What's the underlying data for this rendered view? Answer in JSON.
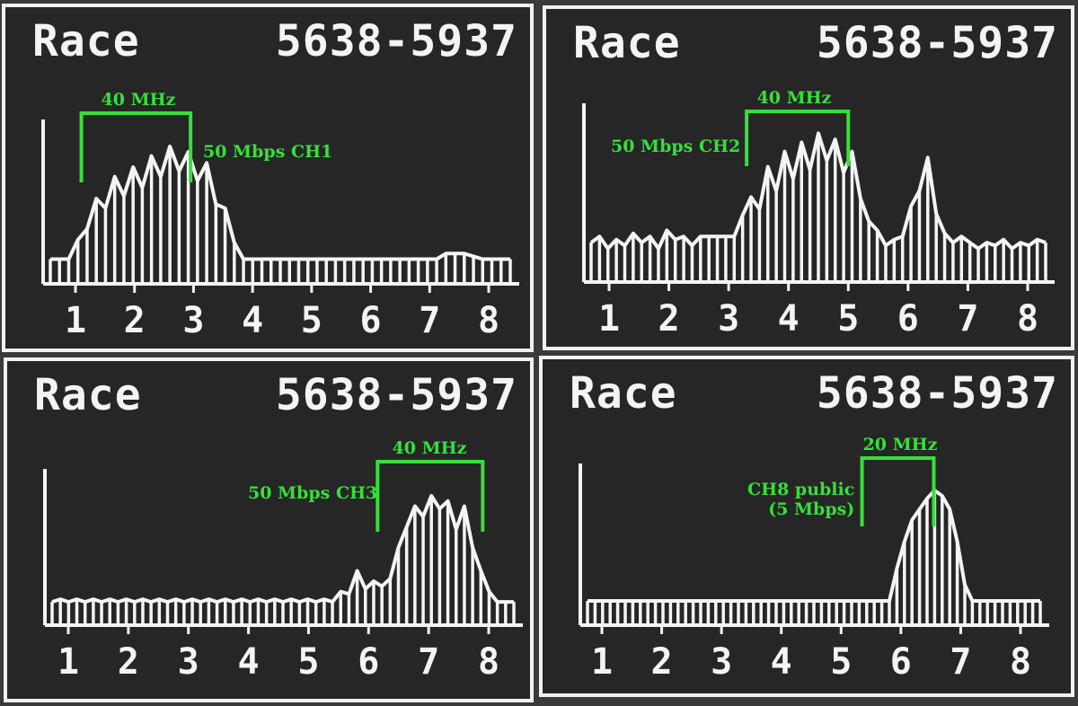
{
  "panels": [
    {
      "title": "Race",
      "freq_range": "5638-5937",
      "bandwidth_label": "40 MHz",
      "channel_label": "50 Mbps CH1",
      "channel_sub": "",
      "x_ticks": [
        "1",
        "2",
        "3",
        "4",
        "5",
        "6",
        "7",
        "8"
      ],
      "bracket_span": [
        1.1,
        2.95
      ],
      "spectrum": [
        0.18,
        0.18,
        0.18,
        0.32,
        0.4,
        0.62,
        0.55,
        0.78,
        0.64,
        0.85,
        0.7,
        0.93,
        0.78,
        1.0,
        0.82,
        0.96,
        0.75,
        0.88,
        0.58,
        0.55,
        0.3,
        0.18,
        0.18,
        0.18,
        0.18,
        0.18,
        0.18,
        0.18,
        0.18,
        0.18,
        0.18,
        0.18,
        0.18,
        0.18,
        0.18,
        0.18,
        0.18,
        0.18,
        0.18,
        0.18,
        0.18,
        0.18,
        0.18,
        0.22,
        0.22,
        0.22,
        0.2,
        0.18,
        0.18,
        0.18,
        0.18
      ]
    },
    {
      "title": "Race",
      "freq_range": "5638-5937",
      "bandwidth_label": "40 MHz",
      "channel_label": "50 Mbps CH2",
      "channel_sub": "",
      "x_ticks": [
        "1",
        "2",
        "3",
        "4",
        "5",
        "6",
        "7",
        "8"
      ],
      "bracket_span": [
        3.3,
        5.0
      ],
      "spectrum": [
        0.26,
        0.3,
        0.22,
        0.28,
        0.24,
        0.32,
        0.26,
        0.3,
        0.22,
        0.34,
        0.28,
        0.3,
        0.24,
        0.3,
        0.3,
        0.3,
        0.3,
        0.3,
        0.44,
        0.56,
        0.48,
        0.76,
        0.6,
        0.86,
        0.68,
        0.92,
        0.74,
        0.98,
        0.8,
        0.94,
        0.72,
        0.86,
        0.55,
        0.4,
        0.34,
        0.24,
        0.28,
        0.3,
        0.5,
        0.6,
        0.82,
        0.45,
        0.32,
        0.26,
        0.3,
        0.26,
        0.22,
        0.26,
        0.24,
        0.28,
        0.22,
        0.26,
        0.24,
        0.28,
        0.26
      ]
    },
    {
      "title": "Race",
      "freq_range": "5638-5937",
      "bandwidth_label": "40 MHz",
      "channel_label": "50 Mbps CH3",
      "channel_sub": "",
      "x_ticks": [
        "1",
        "2",
        "3",
        "4",
        "5",
        "6",
        "7",
        "8"
      ],
      "bracket_span": [
        6.15,
        7.9
      ],
      "spectrum": [
        0.18,
        0.2,
        0.18,
        0.2,
        0.18,
        0.2,
        0.18,
        0.2,
        0.18,
        0.2,
        0.18,
        0.2,
        0.18,
        0.2,
        0.18,
        0.2,
        0.18,
        0.2,
        0.18,
        0.2,
        0.18,
        0.2,
        0.18,
        0.2,
        0.18,
        0.2,
        0.18,
        0.2,
        0.18,
        0.2,
        0.18,
        0.2,
        0.18,
        0.2,
        0.18,
        0.26,
        0.24,
        0.42,
        0.28,
        0.34,
        0.3,
        0.36,
        0.6,
        0.76,
        0.92,
        0.84,
        1.0,
        0.9,
        0.96,
        0.74,
        0.92,
        0.6,
        0.42,
        0.26,
        0.18,
        0.18,
        0.18
      ]
    },
    {
      "title": "Race",
      "freq_range": "5638-5937",
      "bandwidth_label": "20 MHz",
      "channel_label": "CH8 public",
      "channel_sub": "(5 Mbps)",
      "x_ticks": [
        "1",
        "2",
        "3",
        "4",
        "5",
        "6",
        "7",
        "8"
      ],
      "bracket_span": [
        5.35,
        6.55
      ],
      "spectrum": [
        0.18,
        0.18,
        0.18,
        0.18,
        0.18,
        0.18,
        0.18,
        0.18,
        0.18,
        0.18,
        0.18,
        0.18,
        0.18,
        0.18,
        0.18,
        0.18,
        0.18,
        0.18,
        0.18,
        0.18,
        0.18,
        0.18,
        0.18,
        0.18,
        0.18,
        0.18,
        0.18,
        0.18,
        0.18,
        0.18,
        0.18,
        0.18,
        0.18,
        0.18,
        0.18,
        0.18,
        0.18,
        0.18,
        0.18,
        0.18,
        0.18,
        0.42,
        0.62,
        0.78,
        0.86,
        0.94,
        1.0,
        0.96,
        0.86,
        0.62,
        0.3,
        0.18,
        0.18,
        0.18,
        0.18,
        0.18,
        0.18,
        0.18,
        0.18,
        0.18,
        0.18
      ]
    }
  ],
  "style": {
    "trace_color": "#f4f4f4",
    "annotation_color": "#35e03a",
    "screen_bg": "#262626"
  }
}
